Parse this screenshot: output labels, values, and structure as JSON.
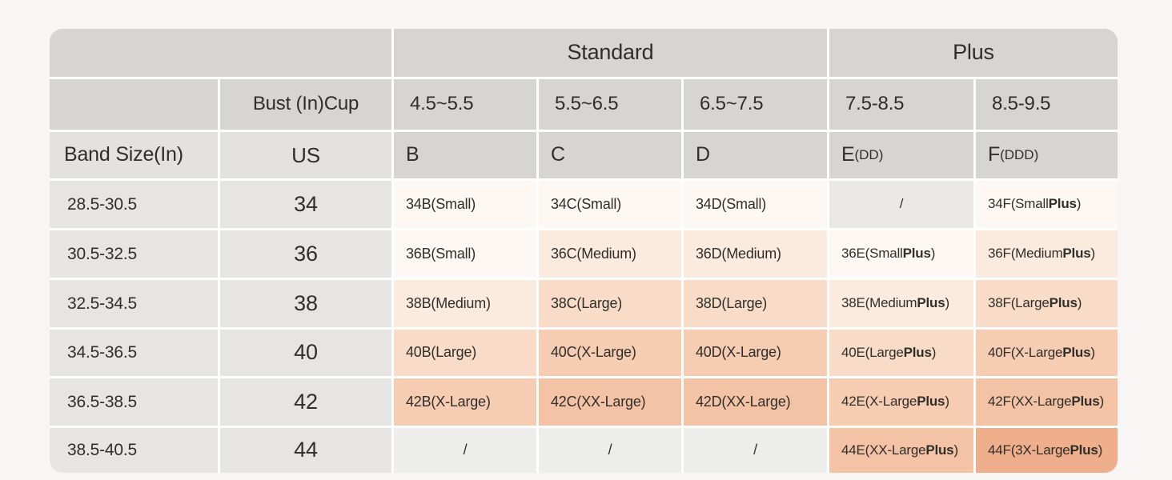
{
  "chart_data": {
    "type": "table",
    "column_groups": [
      {
        "label": "",
        "span": 2
      },
      {
        "label": "Standard",
        "span": 3
      },
      {
        "label": "Plus",
        "span": 2
      }
    ],
    "bust_header": {
      "label": "Bust (In)Cup",
      "ranges": [
        "4.5~5.5",
        "5.5~6.5",
        "6.5~7.5",
        "7.5-8.5",
        "8.5-9.5"
      ]
    },
    "cup_header": {
      "band_label": "Band Size(In)",
      "region_label": "US",
      "cups": [
        {
          "main": "B",
          "sub": ""
        },
        {
          "main": "C",
          "sub": ""
        },
        {
          "main": "D",
          "sub": ""
        },
        {
          "main": "E",
          "sub": "(DD)"
        },
        {
          "main": "F",
          "sub": "(DDD)"
        }
      ]
    },
    "rows": [
      {
        "band": "28.5-30.5",
        "us": "34",
        "sizes": [
          {
            "label": "34B(Small)",
            "tone": "small"
          },
          {
            "label": "34C(Small)",
            "tone": "small"
          },
          {
            "label": "34D(Small)",
            "tone": "small"
          },
          {
            "label": "/",
            "tone": "empty_dark"
          },
          {
            "label": "34F(Small Plus)",
            "tone": "small",
            "bold_plus": true
          }
        ]
      },
      {
        "band": "30.5-32.5",
        "us": "36",
        "sizes": [
          {
            "label": "36B(Small)",
            "tone": "small"
          },
          {
            "label": "36C(Medium)",
            "tone": "medium"
          },
          {
            "label": "36D(Medium)",
            "tone": "medium"
          },
          {
            "label": "36E(Small Plus)",
            "tone": "small",
            "bold_plus": true
          },
          {
            "label": "36F(Medium Plus)",
            "tone": "medium",
            "bold_plus": true
          }
        ]
      },
      {
        "band": "32.5-34.5",
        "us": "38",
        "sizes": [
          {
            "label": "38B(Medium)",
            "tone": "medium"
          },
          {
            "label": "38C(Large)",
            "tone": "large"
          },
          {
            "label": "38D(Large)",
            "tone": "large"
          },
          {
            "label": "38E(Medium Plus)",
            "tone": "medium",
            "bold_plus": true
          },
          {
            "label": "38F(Large Plus)",
            "tone": "large",
            "bold_plus": true
          }
        ]
      },
      {
        "band": "34.5-36.5",
        "us": "40",
        "sizes": [
          {
            "label": "40B(Large)",
            "tone": "large"
          },
          {
            "label": "40C(X-Large)",
            "tone": "xlarge"
          },
          {
            "label": "40D(X-Large)",
            "tone": "xlarge"
          },
          {
            "label": "40E(Large Plus)",
            "tone": "large",
            "bold_plus": true
          },
          {
            "label": "40F(X-Large Plus)",
            "tone": "xlarge",
            "bold_plus": true
          }
        ]
      },
      {
        "band": "36.5-38.5",
        "us": "42",
        "sizes": [
          {
            "label": "42B(X-Large)",
            "tone": "xlarge"
          },
          {
            "label": "42C(XX-Large)",
            "tone": "xxlarge"
          },
          {
            "label": "42D(XX-Large)",
            "tone": "xxlarge"
          },
          {
            "label": "42E(X-Large Plus)",
            "tone": "xlarge",
            "bold_plus": true
          },
          {
            "label": "42F(XX-Large Plus)",
            "tone": "xxlarge",
            "bold_plus": true
          }
        ]
      },
      {
        "band": "38.5-40.5",
        "us": "44",
        "sizes": [
          {
            "label": "/",
            "tone": "empty_light"
          },
          {
            "label": "/",
            "tone": "empty_light"
          },
          {
            "label": "/",
            "tone": "empty_light"
          },
          {
            "label": "44E(XX-Large Plus)",
            "tone": "xxlarge",
            "bold_plus": true
          },
          {
            "label": "44F(3X-Large Plus)",
            "tone": "xxxlarge",
            "bold_plus": true
          }
        ]
      }
    ],
    "tones": {
      "small": "#fdf8f4",
      "medium": "#fbebdf",
      "large": "#f8dcc8",
      "xlarge": "#f6ccb3",
      "xxlarge": "#f4c3a5",
      "xxxlarge": "#efae8c",
      "empty_dark": "#e9e8e6",
      "empty_light": "#ededec"
    },
    "colors": {
      "page_bg": "#f7f6f4",
      "header_bg": "#d6d5d3",
      "subheader_bg": "#e3e2e0",
      "band_column_bg": "#e6e5e3",
      "cell_gap": "#ffffff",
      "text": "#2f2e2b"
    }
  }
}
